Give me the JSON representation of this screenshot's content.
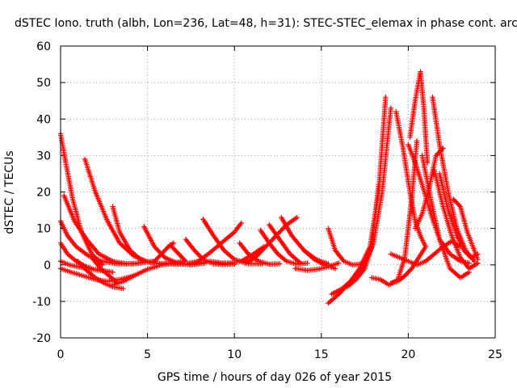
{
  "chart_data": {
    "type": "scatter",
    "title": "dSTEC Iono. truth (albh, Lon=236, Lat=48, h=31): STEC-STEC_elemax in phase cont. arc",
    "xlabel": "GPS time / hours of day 026 of year 2015",
    "ylabel": "dSTEC  / TECUs",
    "xlim": [
      0,
      25
    ],
    "ylim": [
      -20,
      60
    ],
    "xticks": [
      0,
      5,
      10,
      15,
      20,
      25
    ],
    "yticks": [
      -20,
      -10,
      0,
      10,
      20,
      30,
      40,
      50,
      60
    ],
    "xtick_labels": [
      "0",
      "5",
      "10",
      "15",
      "20",
      "25"
    ],
    "ytick_labels": [
      "-20",
      "-10",
      "0",
      "10",
      "20",
      "30",
      "40",
      "50",
      "60"
    ],
    "grid": true,
    "marker": "plus",
    "color": "#ff0000",
    "series": [
      {
        "x": [
          0.0,
          0.3,
          0.7,
          1.2,
          1.8,
          2.4
        ],
        "y": [
          36,
          28,
          18,
          9,
          3,
          0
        ]
      },
      {
        "x": [
          0.0,
          0.4,
          0.9,
          1.6,
          2.4,
          3.2,
          4.2,
          5.3
        ],
        "y": [
          12,
          8,
          5,
          2.5,
          1,
          0.3,
          0.3,
          1
        ]
      },
      {
        "x": [
          0.2,
          0.8,
          1.5,
          2.2,
          3.0,
          3.8,
          4.6
        ],
        "y": [
          19,
          12,
          7,
          3,
          1,
          0.3,
          0.5
        ]
      },
      {
        "x": [
          0.0,
          0.4,
          0.9,
          1.4,
          1.9,
          2.4
        ],
        "y": [
          6,
          3,
          1,
          -0.3,
          -1.2,
          -1.6
        ]
      },
      {
        "x": [
          0.0,
          0.5,
          1.0,
          1.5,
          2.0,
          2.5,
          3.0
        ],
        "y": [
          1,
          0,
          -0.5,
          -1,
          -1.3,
          -1.6,
          -2
        ]
      },
      {
        "x": [
          0.0,
          0.6,
          1.3,
          2.0,
          2.7,
          3.4,
          4.2
        ],
        "y": [
          -1,
          -2,
          -3,
          -4,
          -4.5,
          -4,
          -3
        ]
      },
      {
        "x": [
          1.0,
          1.5,
          2.0,
          2.5,
          3.0,
          3.6
        ],
        "y": [
          1,
          -1.5,
          -3.5,
          -5,
          -6,
          -6.5
        ]
      },
      {
        "x": [
          1.4,
          2.0,
          2.7,
          3.4,
          4.2,
          5.0,
          6.0,
          7.0
        ],
        "y": [
          29,
          20,
          12,
          6,
          2.5,
          0.8,
          0.2,
          0.5
        ]
      },
      {
        "x": [
          3.0,
          3.4,
          4.0,
          4.6,
          5.3,
          6.0
        ],
        "y": [
          16,
          9,
          4,
          1.5,
          0.5,
          0.3
        ]
      },
      {
        "x": [
          3.0,
          3.6,
          4.2,
          5.0,
          5.8,
          6.5,
          7.1
        ],
        "y": [
          -5.5,
          -4.5,
          -3,
          -1.2,
          0,
          0.6,
          1
        ]
      },
      {
        "x": [
          1.8,
          2.3,
          2.8,
          3.3
        ],
        "y": [
          2,
          -1,
          -3,
          -5
        ]
      },
      {
        "x": [
          4.8,
          5.4,
          6.0,
          6.7,
          7.5,
          8.3
        ],
        "y": [
          10.5,
          5,
          2,
          0.5,
          0,
          0.5
        ]
      },
      {
        "x": [
          6.0,
          6.6,
          7.2,
          7.9,
          8.6,
          9.3,
          10.0
        ],
        "y": [
          0.5,
          0.2,
          0.2,
          0.5,
          1,
          0.5,
          0.2
        ]
      },
      {
        "x": [
          5.4,
          5.8,
          6.2,
          6.5
        ],
        "y": [
          1,
          3,
          5,
          6
        ]
      },
      {
        "x": [
          6.3,
          6.8,
          7.2
        ],
        "y": [
          5.5,
          3,
          1
        ]
      },
      {
        "x": [
          7.2,
          7.7,
          8.2,
          8.8,
          9.4,
          10.0
        ],
        "y": [
          7,
          4,
          1.5,
          0.3,
          0.1,
          0.3
        ]
      },
      {
        "x": [
          7.4,
          7.9,
          8.5,
          9.0,
          9.5,
          10.0,
          10.4
        ],
        "y": [
          0.5,
          1,
          3,
          5,
          7,
          9,
          11.5
        ]
      },
      {
        "x": [
          8.2,
          8.8,
          9.4,
          10.0,
          10.8,
          11.6
        ],
        "y": [
          12.5,
          8,
          4,
          1.5,
          0.3,
          0.3
        ]
      },
      {
        "x": [
          9.0,
          9.7,
          10.4,
          11.1,
          11.7
        ],
        "y": [
          0.5,
          0.5,
          1,
          3,
          5
        ]
      },
      {
        "x": [
          10.3,
          10.8,
          11.4,
          12.0,
          12.6
        ],
        "y": [
          6,
          3,
          1,
          0.2,
          0.3
        ]
      },
      {
        "x": [
          10.6,
          11.2,
          11.8,
          12.4,
          13.0,
          13.6
        ],
        "y": [
          0.5,
          2,
          5,
          8,
          11,
          13
        ]
      },
      {
        "x": [
          11.5,
          12.0,
          12.5,
          13.0,
          13.6,
          14.2
        ],
        "y": [
          9.5,
          6,
          3,
          1,
          0.2,
          0.5
        ]
      },
      {
        "x": [
          12.0,
          12.6,
          13.2,
          13.8
        ],
        "y": [
          11,
          7,
          3,
          0.5
        ]
      },
      {
        "x": [
          12.7,
          13.3,
          14.0,
          14.7,
          15.4
        ],
        "y": [
          13,
          8,
          4,
          1.5,
          0.3
        ]
      },
      {
        "x": [
          13.5,
          14.2,
          14.8,
          15.4,
          16.0
        ],
        "y": [
          -1,
          -1.5,
          -1.2,
          -0.5,
          0.5
        ]
      },
      {
        "x": [
          14.0,
          14.6,
          15.2,
          15.8
        ],
        "y": [
          4,
          1.5,
          0,
          -1
        ]
      },
      {
        "x": [
          15.4,
          15.8,
          16.3,
          16.8,
          17.3
        ],
        "y": [
          10,
          4,
          1,
          0,
          0.3
        ]
      },
      {
        "x": [
          15.4,
          16.0,
          16.6,
          17.2,
          17.8,
          18.3,
          18.7
        ],
        "y": [
          -10.5,
          -8,
          -5,
          -1,
          5,
          20,
          46
        ]
      },
      {
        "x": [
          15.6,
          16.2,
          16.8,
          17.4,
          18.0,
          18.5,
          19.0
        ],
        "y": [
          -8,
          -6.5,
          -4,
          -0.5,
          6,
          20,
          43
        ]
      },
      {
        "x": [
          16.5,
          17.0,
          17.5,
          17.9,
          18.3
        ],
        "y": [
          -6,
          -4,
          -1,
          5,
          22
        ]
      },
      {
        "x": [
          17.9,
          18.4,
          18.9,
          19.4,
          19.8,
          20.2,
          20.5
        ],
        "y": [
          -3.5,
          -4,
          -5.5,
          -4,
          2,
          18,
          34
        ]
      },
      {
        "x": [
          19.3,
          19.7,
          20.1,
          20.4,
          20.7,
          21.0
        ],
        "y": [
          42,
          32,
          20,
          12,
          8,
          5
        ]
      },
      {
        "x": [
          20.1,
          20.4,
          20.7,
          20.9,
          21.1
        ],
        "y": [
          35,
          45,
          53,
          43,
          28
        ]
      },
      {
        "x": [
          20.0,
          20.4,
          20.8,
          21.3,
          21.8,
          22.4,
          23.0,
          23.5
        ],
        "y": [
          33,
          28,
          22,
          14,
          7,
          3,
          1,
          0.5
        ]
      },
      {
        "x": [
          19.0,
          19.5,
          20.0,
          20.5,
          21.0,
          21.5,
          22.0,
          22.5,
          23.0
        ],
        "y": [
          3,
          2,
          1,
          0,
          1,
          3,
          5,
          6.5,
          5
        ]
      },
      {
        "x": [
          20.4,
          20.8,
          21.2,
          21.6,
          22.0
        ],
        "y": [
          10,
          14,
          21,
          30,
          32
        ]
      },
      {
        "x": [
          21.4,
          21.8,
          22.3,
          22.8,
          23.3,
          23.8
        ],
        "y": [
          46,
          33,
          20,
          10,
          4,
          1
        ]
      },
      {
        "x": [
          21.8,
          22.3,
          22.8,
          23.2,
          23.6,
          24.0
        ],
        "y": [
          25,
          15,
          8,
          4,
          2,
          3
        ]
      },
      {
        "x": [
          22.6,
          23.0,
          23.4,
          23.8,
          24.0
        ],
        "y": [
          18,
          16,
          9,
          4,
          1.5
        ]
      },
      {
        "x": [
          20.8,
          21.3,
          21.8,
          22.4,
          23.0,
          23.5
        ],
        "y": [
          30,
          18,
          7,
          -1,
          -3.5,
          -2
        ]
      },
      {
        "x": [
          21.5,
          22.0,
          22.5,
          23.0,
          23.5,
          24.0
        ],
        "y": [
          26,
          16,
          8,
          2,
          -1,
          0.5
        ]
      },
      {
        "x": [
          19.0,
          19.4,
          19.8,
          20.2,
          20.6,
          21.0
        ],
        "y": [
          -5,
          -4.5,
          -3,
          -1,
          2,
          5
        ]
      }
    ]
  }
}
